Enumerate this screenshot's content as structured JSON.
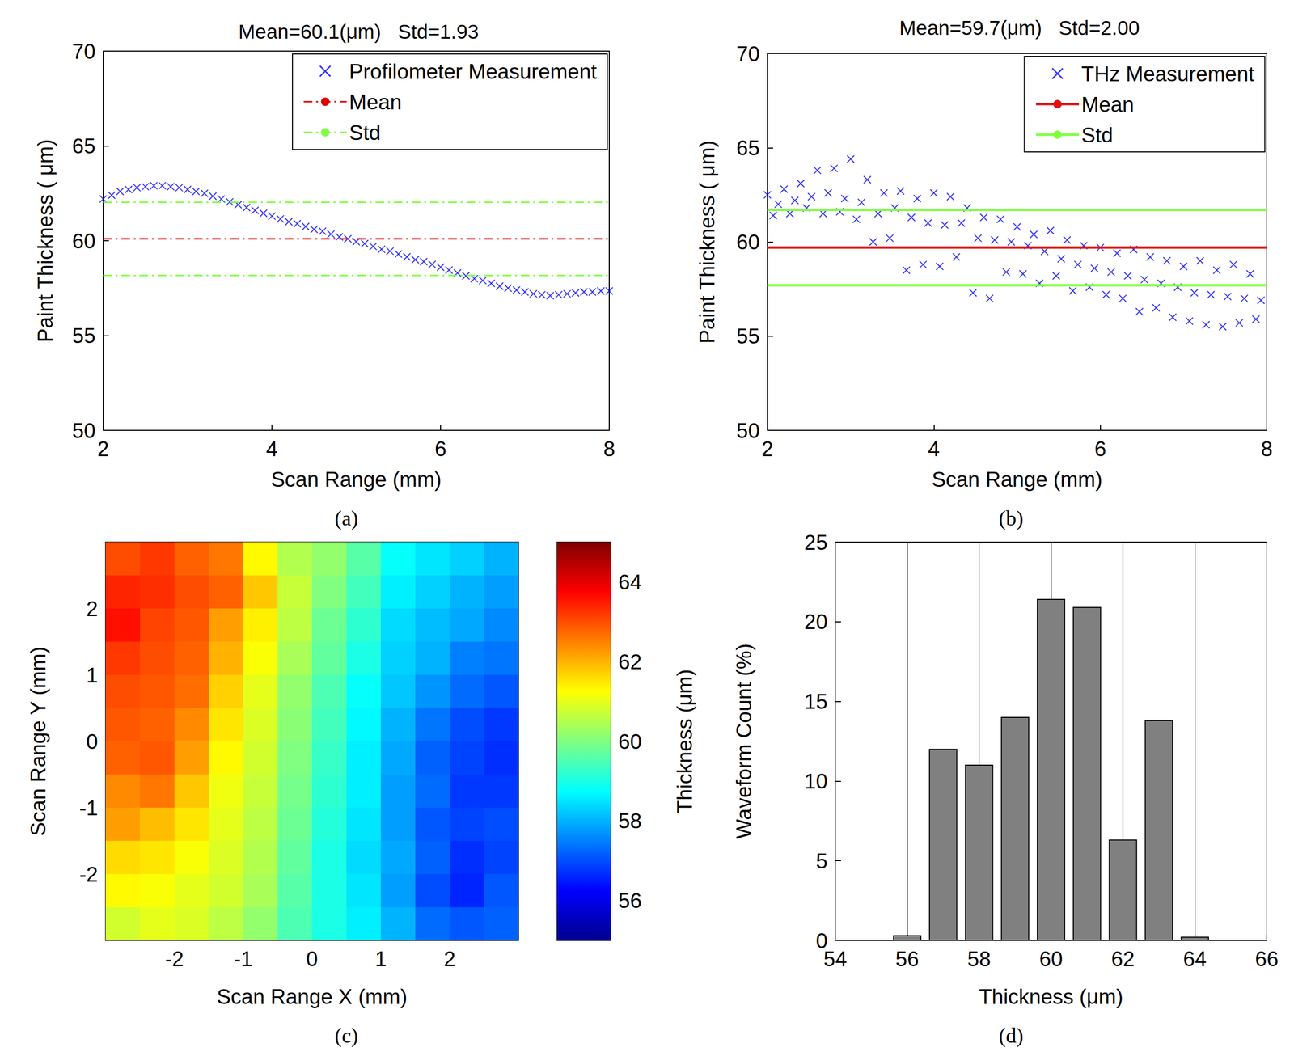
{
  "chart_data": [
    {
      "type": "scatter",
      "title": "Mean=60.1(μm)   Std=1.93",
      "caption": "(a)",
      "x_label": "Scan Range (mm)",
      "y_label": "Paint Thickness ( μm)",
      "xlim": [
        2,
        8
      ],
      "xticks": [
        2,
        4,
        6,
        8
      ],
      "ylim": [
        50,
        70
      ],
      "yticks": [
        50,
        55,
        60,
        65,
        70
      ],
      "grid": false,
      "legend": "upper right",
      "series": [
        {
          "name": "Profilometer Measurement",
          "type": "scatter",
          "marker": "x",
          "color": "#0000ff",
          "x": [
            2.0,
            2.1,
            2.2,
            2.3,
            2.4,
            2.5,
            2.6,
            2.7,
            2.8,
            2.9,
            3.0,
            3.1,
            3.2,
            3.3,
            3.4,
            3.5,
            3.6,
            3.7,
            3.8,
            3.9,
            4.0,
            4.1,
            4.2,
            4.3,
            4.4,
            4.5,
            4.6,
            4.7,
            4.8,
            4.9,
            5.0,
            5.1,
            5.2,
            5.3,
            5.4,
            5.5,
            5.6,
            5.7,
            5.8,
            5.9,
            6.0,
            6.1,
            6.2,
            6.3,
            6.4,
            6.5,
            6.6,
            6.7,
            6.8,
            6.9,
            7.0,
            7.1,
            7.2,
            7.3,
            7.4,
            7.5,
            7.6,
            7.7,
            7.8,
            7.9,
            8.0
          ],
          "values": [
            62.2,
            62.4,
            62.6,
            62.7,
            62.8,
            62.85,
            62.9,
            62.9,
            62.85,
            62.8,
            62.7,
            62.6,
            62.5,
            62.35,
            62.2,
            62.05,
            61.9,
            61.75,
            61.6,
            61.45,
            61.3,
            61.15,
            61.0,
            60.9,
            60.75,
            60.6,
            60.5,
            60.35,
            60.2,
            60.1,
            59.95,
            59.85,
            59.7,
            59.55,
            59.45,
            59.3,
            59.15,
            59.0,
            58.9,
            58.75,
            58.6,
            58.45,
            58.3,
            58.15,
            58.0,
            57.9,
            57.75,
            57.6,
            57.5,
            57.4,
            57.3,
            57.2,
            57.15,
            57.1,
            57.15,
            57.2,
            57.25,
            57.3,
            57.3,
            57.35,
            57.35
          ]
        },
        {
          "name": "Mean",
          "type": "hline",
          "color": "#e00000",
          "line_style": "dashdot",
          "values": [
            60.1
          ]
        },
        {
          "name": "Std",
          "type": "hline",
          "color": "#7fff3f",
          "line_style": "dashdot",
          "values": [
            62.03,
            58.17
          ]
        }
      ]
    },
    {
      "type": "scatter",
      "title": "Mean=59.7(μm)   Std=2.00",
      "caption": "(b)",
      "x_label": "Scan Range (mm)",
      "y_label": "Paint Thickness ( μm)",
      "xlim": [
        2,
        8
      ],
      "xticks": [
        2,
        4,
        6,
        8
      ],
      "ylim": [
        50,
        70
      ],
      "yticks": [
        50,
        55,
        60,
        65,
        70
      ],
      "grid": false,
      "legend": "upper right",
      "series": [
        {
          "name": "THz Measurement",
          "type": "scatter",
          "marker": "x",
          "color": "#0000ff",
          "x": [
            2.0,
            2.07,
            2.13,
            2.2,
            2.27,
            2.33,
            2.4,
            2.47,
            2.53,
            2.6,
            2.67,
            2.73,
            2.8,
            2.87,
            2.93,
            3.0,
            3.07,
            3.13,
            3.2,
            3.27,
            3.33,
            3.4,
            3.47,
            3.53,
            3.6,
            3.67,
            3.73,
            3.8,
            3.87,
            3.93,
            4.0,
            4.07,
            4.13,
            4.2,
            4.27,
            4.33,
            4.4,
            4.47,
            4.53,
            4.6,
            4.67,
            4.73,
            4.8,
            4.87,
            4.93,
            5.0,
            5.07,
            5.13,
            5.2,
            5.27,
            5.33,
            5.4,
            5.47,
            5.53,
            5.6,
            5.67,
            5.73,
            5.8,
            5.87,
            5.93,
            6.0,
            6.07,
            6.13,
            6.2,
            6.27,
            6.33,
            6.4,
            6.47,
            6.53,
            6.6,
            6.67,
            6.73,
            6.8,
            6.87,
            6.93,
            7.0,
            7.07,
            7.13,
            7.2,
            7.27,
            7.33,
            7.4,
            7.47,
            7.53,
            7.6,
            7.67,
            7.73,
            7.8,
            7.87,
            7.93
          ],
          "values": [
            62.5,
            61.4,
            62.0,
            62.8,
            61.5,
            62.2,
            63.1,
            61.8,
            62.4,
            63.8,
            61.5,
            62.6,
            63.9,
            61.6,
            62.3,
            64.4,
            61.2,
            62.1,
            63.3,
            60.0,
            61.5,
            62.6,
            60.2,
            61.8,
            62.7,
            58.5,
            61.3,
            62.3,
            58.8,
            61.0,
            62.6,
            58.7,
            60.9,
            62.4,
            59.2,
            61.0,
            61.8,
            57.3,
            60.2,
            61.3,
            57.0,
            60.1,
            61.2,
            58.4,
            60.0,
            60.8,
            58.3,
            59.8,
            60.4,
            57.8,
            59.5,
            60.6,
            58.2,
            59.1,
            60.1,
            57.4,
            58.8,
            59.8,
            57.6,
            58.6,
            59.7,
            57.2,
            58.4,
            59.4,
            57.0,
            58.2,
            59.6,
            56.3,
            58.0,
            59.2,
            56.5,
            57.8,
            59.0,
            56.0,
            57.6,
            58.7,
            55.8,
            57.3,
            59.0,
            55.6,
            57.2,
            58.5,
            55.5,
            57.1,
            58.8,
            55.7,
            57.0,
            58.3,
            55.9,
            56.9
          ]
        },
        {
          "name": "Mean",
          "type": "hline",
          "color": "#e01010",
          "line_style": "solid",
          "values": [
            59.7
          ]
        },
        {
          "name": "Std",
          "type": "hline",
          "color": "#7fff3f",
          "line_style": "solid",
          "values": [
            61.7,
            57.7
          ]
        }
      ]
    },
    {
      "type": "heatmap",
      "caption": "(c)",
      "x_label": "Scan Range X (mm)",
      "y_label": "Scan Range Y (mm)",
      "xlim": [
        -3,
        3
      ],
      "xticks": [
        -2,
        -1,
        0,
        1,
        2
      ],
      "ylim": [
        -3,
        3
      ],
      "yticks": [
        -2,
        -1,
        0,
        1,
        2
      ],
      "grid": false,
      "x": [
        -2.75,
        -2.25,
        -1.75,
        -1.25,
        -0.75,
        -0.25,
        0.25,
        0.75,
        1.25,
        1.75,
        2.25,
        2.75
      ],
      "y": [
        2.75,
        2.25,
        1.75,
        1.25,
        0.75,
        0.25,
        -0.25,
        -0.75,
        -1.25,
        -1.75,
        -2.25,
        -2.75
      ],
      "values": [
        [
          63.0,
          63.2,
          62.8,
          62.6,
          61.3,
          60.5,
          60.2,
          59.6,
          58.8,
          58.5,
          58.3,
          58.0
        ],
        [
          63.4,
          63.3,
          63.0,
          62.8,
          61.8,
          60.7,
          60.0,
          59.4,
          58.6,
          58.3,
          58.0,
          57.8
        ],
        [
          63.6,
          63.1,
          62.9,
          62.2,
          61.4,
          60.6,
          59.8,
          59.2,
          58.4,
          58.1,
          57.9,
          57.6
        ],
        [
          63.2,
          63.0,
          62.8,
          62.0,
          61.2,
          60.4,
          59.7,
          59.0,
          58.3,
          58.0,
          57.5,
          57.4
        ],
        [
          63.0,
          62.9,
          62.7,
          61.7,
          61.0,
          60.2,
          59.5,
          58.8,
          58.2,
          57.7,
          57.3,
          57.1
        ],
        [
          62.9,
          62.8,
          62.4,
          61.5,
          60.9,
          60.1,
          59.4,
          58.7,
          58.0,
          57.4,
          57.0,
          56.8
        ],
        [
          62.8,
          62.9,
          62.2,
          61.3,
          60.8,
          60.0,
          59.3,
          58.6,
          57.9,
          57.2,
          56.9,
          56.7
        ],
        [
          62.4,
          62.6,
          61.8,
          61.1,
          60.7,
          59.9,
          59.2,
          58.6,
          57.8,
          57.3,
          56.8,
          56.8
        ],
        [
          62.2,
          61.9,
          61.5,
          61.0,
          60.6,
          59.8,
          59.1,
          58.5,
          57.8,
          57.1,
          56.9,
          57.0
        ],
        [
          61.6,
          61.5,
          61.2,
          60.9,
          60.5,
          59.7,
          59.0,
          58.4,
          57.9,
          57.2,
          56.7,
          56.9
        ],
        [
          61.3,
          61.2,
          61.0,
          60.8,
          60.4,
          59.6,
          59.0,
          58.5,
          57.8,
          57.0,
          56.6,
          57.1
        ],
        [
          60.8,
          61.0,
          60.9,
          60.6,
          60.2,
          59.5,
          59.0,
          58.6,
          58.0,
          57.3,
          57.1,
          57.2
        ]
      ],
      "colorbar": {
        "label": "Thickness (μm)",
        "range": [
          55,
          65
        ],
        "ticks": [
          56,
          58,
          60,
          62,
          64
        ]
      }
    },
    {
      "type": "histogram",
      "caption": "(d)",
      "x_label": "Thickness (μm)",
      "y_label": "Waveform Count (%)",
      "bins": [
        55.5,
        56.5,
        57.5,
        58.5,
        59.5,
        60.5,
        61.5,
        62.5,
        63.5,
        64.5
      ],
      "values": [
        0.3,
        12,
        11,
        14,
        21.4,
        20.9,
        6.3,
        13.8,
        0.2
      ],
      "color": "#808080",
      "xlim": [
        54,
        66
      ],
      "xticks": [
        54,
        56,
        58,
        60,
        62,
        64,
        66
      ],
      "ylim": [
        0,
        25
      ],
      "yticks": [
        0,
        5,
        10,
        15,
        20,
        25
      ],
      "grid": "x"
    }
  ]
}
